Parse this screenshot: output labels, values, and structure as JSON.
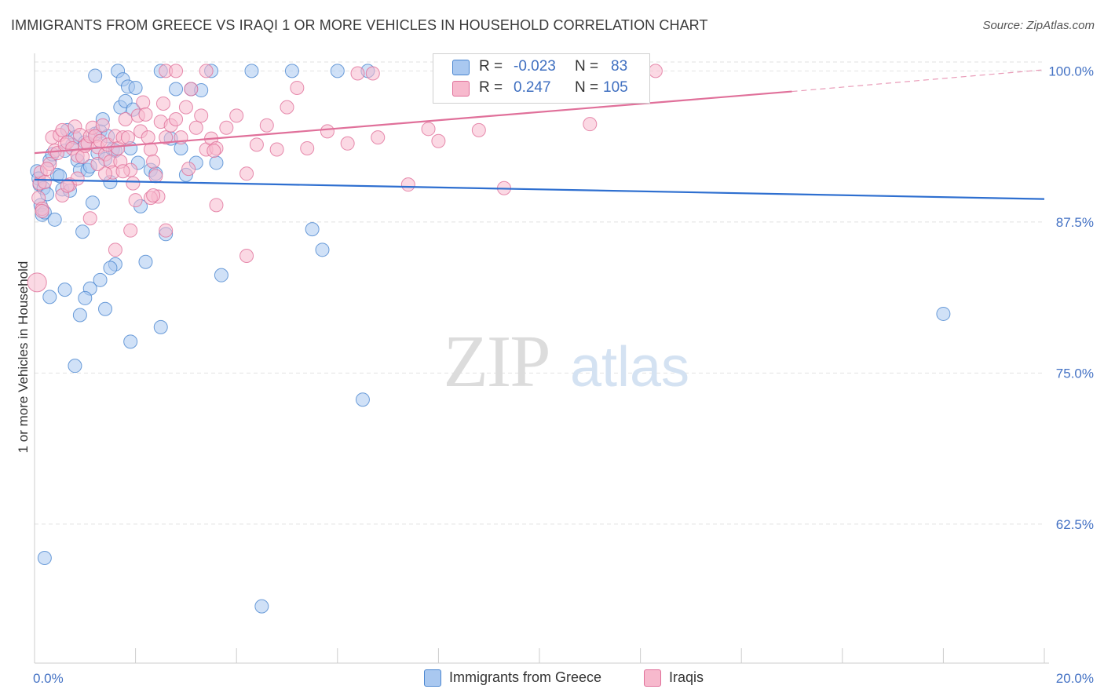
{
  "title": "IMMIGRANTS FROM GREECE VS IRAQI 1 OR MORE VEHICLES IN HOUSEHOLD CORRELATION CHART",
  "source": "Source: ZipAtlas.com",
  "watermark": {
    "zip": "ZIP",
    "atlas": "atlas"
  },
  "stats": {
    "r_label": "R =",
    "n_label": "N =",
    "rows": [
      {
        "r": "-0.023",
        "n": "83",
        "color": "#a9c8f0",
        "border": "#4a86d0"
      },
      {
        "r": "0.247",
        "n": "105",
        "color": "#f7b9cd",
        "border": "#e0709a"
      }
    ]
  },
  "legend": [
    {
      "label": "Immigrants from Greece",
      "color": "#a9c8f0",
      "border": "#4a86d0"
    },
    {
      "label": "Iraqis",
      "color": "#f7b9cd",
      "border": "#e0709a"
    }
  ],
  "chart_data": {
    "type": "scatter",
    "title": "IMMIGRANTS FROM GREECE VS IRAQI 1 OR MORE VEHICLES IN HOUSEHOLD CORRELATION CHART",
    "xlabel": "",
    "ylabel": "1 or more Vehicles in Household",
    "xlim": [
      0,
      20
    ],
    "ylim": [
      51,
      101
    ],
    "x_ticks": [
      {
        "value": 0,
        "label": "0.0%"
      },
      {
        "value": 20,
        "label": "20.0%"
      }
    ],
    "y_ticks": [
      {
        "value": 100,
        "label": "100.0%"
      },
      {
        "value": 87.5,
        "label": "87.5%"
      },
      {
        "value": 75,
        "label": "75.0%"
      },
      {
        "value": 62.5,
        "label": "62.5%"
      }
    ],
    "series": [
      {
        "name": "Immigrants from Greece",
        "color": "#a9c8f0",
        "stroke": "#4a86d0",
        "trend": {
          "x": [
            0,
            20
          ],
          "y": [
            91.0,
            89.4
          ],
          "color": "#2e6fd0"
        },
        "points": [
          [
            0.05,
            91.7
          ],
          [
            0.08,
            91.1
          ],
          [
            0.1,
            90.6
          ],
          [
            0.12,
            88.9
          ],
          [
            0.15,
            88.1
          ],
          [
            0.18,
            90.3
          ],
          [
            0.2,
            88.3
          ],
          [
            0.25,
            89.8
          ],
          [
            0.3,
            92.6
          ],
          [
            0.35,
            93.1
          ],
          [
            0.4,
            87.7
          ],
          [
            0.45,
            91.4
          ],
          [
            0.5,
            91.3
          ],
          [
            0.55,
            90.2
          ],
          [
            0.6,
            93.4
          ],
          [
            0.65,
            95.1
          ],
          [
            0.7,
            90.1
          ],
          [
            0.75,
            93.9
          ],
          [
            0.8,
            94.5
          ],
          [
            0.85,
            92.6
          ],
          [
            0.9,
            91.8
          ],
          [
            0.95,
            86.7
          ],
          [
            1.0,
            94.1
          ],
          [
            1.05,
            91.8
          ],
          [
            1.1,
            92.1
          ],
          [
            1.15,
            89.1
          ],
          [
            1.2,
            94.8
          ],
          [
            1.25,
            93.2
          ],
          [
            1.3,
            95.0
          ],
          [
            1.35,
            96.0
          ],
          [
            1.4,
            92.7
          ],
          [
            1.45,
            94.6
          ],
          [
            1.5,
            90.8
          ],
          [
            1.55,
            93.5
          ],
          [
            1.6,
            93.4
          ],
          [
            1.65,
            100.0
          ],
          [
            1.7,
            97.0
          ],
          [
            1.75,
            99.3
          ],
          [
            1.8,
            97.5
          ],
          [
            1.85,
            98.7
          ],
          [
            1.9,
            93.6
          ],
          [
            1.95,
            96.8
          ],
          [
            2.0,
            98.6
          ],
          [
            2.05,
            92.4
          ],
          [
            2.1,
            88.8
          ],
          [
            2.2,
            84.2
          ],
          [
            2.3,
            91.8
          ],
          [
            2.4,
            91.5
          ],
          [
            2.5,
            100.0
          ],
          [
            2.6,
            86.5
          ],
          [
            2.7,
            94.4
          ],
          [
            2.8,
            98.5
          ],
          [
            2.9,
            93.6
          ],
          [
            3.0,
            91.4
          ],
          [
            3.1,
            98.5
          ],
          [
            3.2,
            92.4
          ],
          [
            3.3,
            98.4
          ],
          [
            3.5,
            100.0
          ],
          [
            3.6,
            92.4
          ],
          [
            3.7,
            83.1
          ],
          [
            0.3,
            81.3
          ],
          [
            0.6,
            81.9
          ],
          [
            0.9,
            79.8
          ],
          [
            1.1,
            82.0
          ],
          [
            1.4,
            80.3
          ],
          [
            1.6,
            84.0
          ],
          [
            1.9,
            77.6
          ],
          [
            0.8,
            75.6
          ],
          [
            2.5,
            78.8
          ],
          [
            4.3,
            100.0
          ],
          [
            5.1,
            100.0
          ],
          [
            6.0,
            100.0
          ],
          [
            6.6,
            100.0
          ],
          [
            5.5,
            86.9
          ],
          [
            5.7,
            85.2
          ],
          [
            6.5,
            72.8
          ],
          [
            1.2,
            99.6
          ],
          [
            0.2,
            59.7
          ],
          [
            4.5,
            55.7
          ],
          [
            1.0,
            81.2
          ],
          [
            1.5,
            83.7
          ],
          [
            1.3,
            82.7
          ],
          [
            18.0,
            79.9
          ]
        ]
      },
      {
        "name": "Iraqis",
        "color": "#f7b9cd",
        "stroke": "#e0709a",
        "trend": {
          "x": [
            0,
            15
          ],
          "y": [
            93.2,
            98.3
          ],
          "dash_to": {
            "x": 20,
            "y": 100.1
          },
          "color": "#e0709a"
        },
        "points": [
          [
            0.05,
            82.5
          ],
          [
            0.08,
            89.5
          ],
          [
            0.1,
            90.7
          ],
          [
            0.12,
            91.6
          ],
          [
            0.15,
            88.6
          ],
          [
            0.2,
            90.8
          ],
          [
            0.3,
            92.3
          ],
          [
            0.35,
            94.5
          ],
          [
            0.4,
            93.4
          ],
          [
            0.45,
            93.2
          ],
          [
            0.5,
            94.7
          ],
          [
            0.55,
            95.1
          ],
          [
            0.6,
            93.9
          ],
          [
            0.65,
            94.1
          ],
          [
            0.7,
            90.6
          ],
          [
            0.75,
            93.6
          ],
          [
            0.8,
            95.4
          ],
          [
            0.85,
            93.0
          ],
          [
            0.9,
            94.7
          ],
          [
            0.95,
            92.9
          ],
          [
            1.0,
            93.8
          ],
          [
            1.05,
            94.0
          ],
          [
            1.1,
            94.6
          ],
          [
            1.15,
            95.3
          ],
          [
            1.2,
            94.6
          ],
          [
            1.25,
            93.7
          ],
          [
            1.3,
            94.2
          ],
          [
            1.35,
            95.5
          ],
          [
            1.4,
            93.1
          ],
          [
            1.45,
            93.9
          ],
          [
            1.5,
            92.5
          ],
          [
            1.55,
            91.6
          ],
          [
            1.6,
            94.6
          ],
          [
            1.65,
            93.6
          ],
          [
            1.7,
            92.5
          ],
          [
            1.75,
            94.5
          ],
          [
            1.8,
            96.0
          ],
          [
            1.85,
            94.5
          ],
          [
            1.9,
            91.8
          ],
          [
            1.95,
            90.7
          ],
          [
            2.0,
            89.3
          ],
          [
            2.05,
            96.3
          ],
          [
            2.1,
            95.0
          ],
          [
            2.15,
            97.4
          ],
          [
            2.2,
            96.4
          ],
          [
            2.25,
            94.5
          ],
          [
            2.3,
            93.5
          ],
          [
            2.35,
            92.5
          ],
          [
            2.4,
            91.3
          ],
          [
            2.45,
            89.6
          ],
          [
            2.5,
            95.8
          ],
          [
            2.55,
            97.3
          ],
          [
            2.6,
            94.5
          ],
          [
            2.7,
            95.5
          ],
          [
            2.8,
            96.0
          ],
          [
            2.9,
            94.5
          ],
          [
            3.0,
            97.0
          ],
          [
            3.1,
            98.5
          ],
          [
            3.2,
            95.3
          ],
          [
            3.3,
            96.3
          ],
          [
            3.4,
            93.5
          ],
          [
            3.5,
            94.4
          ],
          [
            3.6,
            93.6
          ],
          [
            3.8,
            95.3
          ],
          [
            4.0,
            96.3
          ],
          [
            4.2,
            91.5
          ],
          [
            4.4,
            93.9
          ],
          [
            4.6,
            95.5
          ],
          [
            4.8,
            93.5
          ],
          [
            5.0,
            97.0
          ],
          [
            5.2,
            98.6
          ],
          [
            5.4,
            93.6
          ],
          [
            5.8,
            95.0
          ],
          [
            6.2,
            94.0
          ],
          [
            6.8,
            94.5
          ],
          [
            7.4,
            90.6
          ],
          [
            7.8,
            95.2
          ],
          [
            8.0,
            94.2
          ],
          [
            8.8,
            95.1
          ],
          [
            9.3,
            90.3
          ],
          [
            11.0,
            95.6
          ],
          [
            12.3,
            100.0
          ],
          [
            6.4,
            99.8
          ],
          [
            6.7,
            99.8
          ],
          [
            3.4,
            100.0
          ],
          [
            2.6,
            100.0
          ],
          [
            2.8,
            100.0
          ],
          [
            1.4,
            91.5
          ],
          [
            2.3,
            89.5
          ],
          [
            1.1,
            87.8
          ],
          [
            1.6,
            85.2
          ],
          [
            1.9,
            86.8
          ],
          [
            2.6,
            86.8
          ],
          [
            3.6,
            88.9
          ],
          [
            4.2,
            84.7
          ],
          [
            0.25,
            91.9
          ],
          [
            0.55,
            89.7
          ],
          [
            0.85,
            91.1
          ],
          [
            1.25,
            92.3
          ],
          [
            1.75,
            91.7
          ],
          [
            2.35,
            89.7
          ],
          [
            3.05,
            91.9
          ],
          [
            3.55,
            93.4
          ],
          [
            0.15,
            88.4
          ],
          [
            0.65,
            90.5
          ]
        ]
      }
    ]
  }
}
